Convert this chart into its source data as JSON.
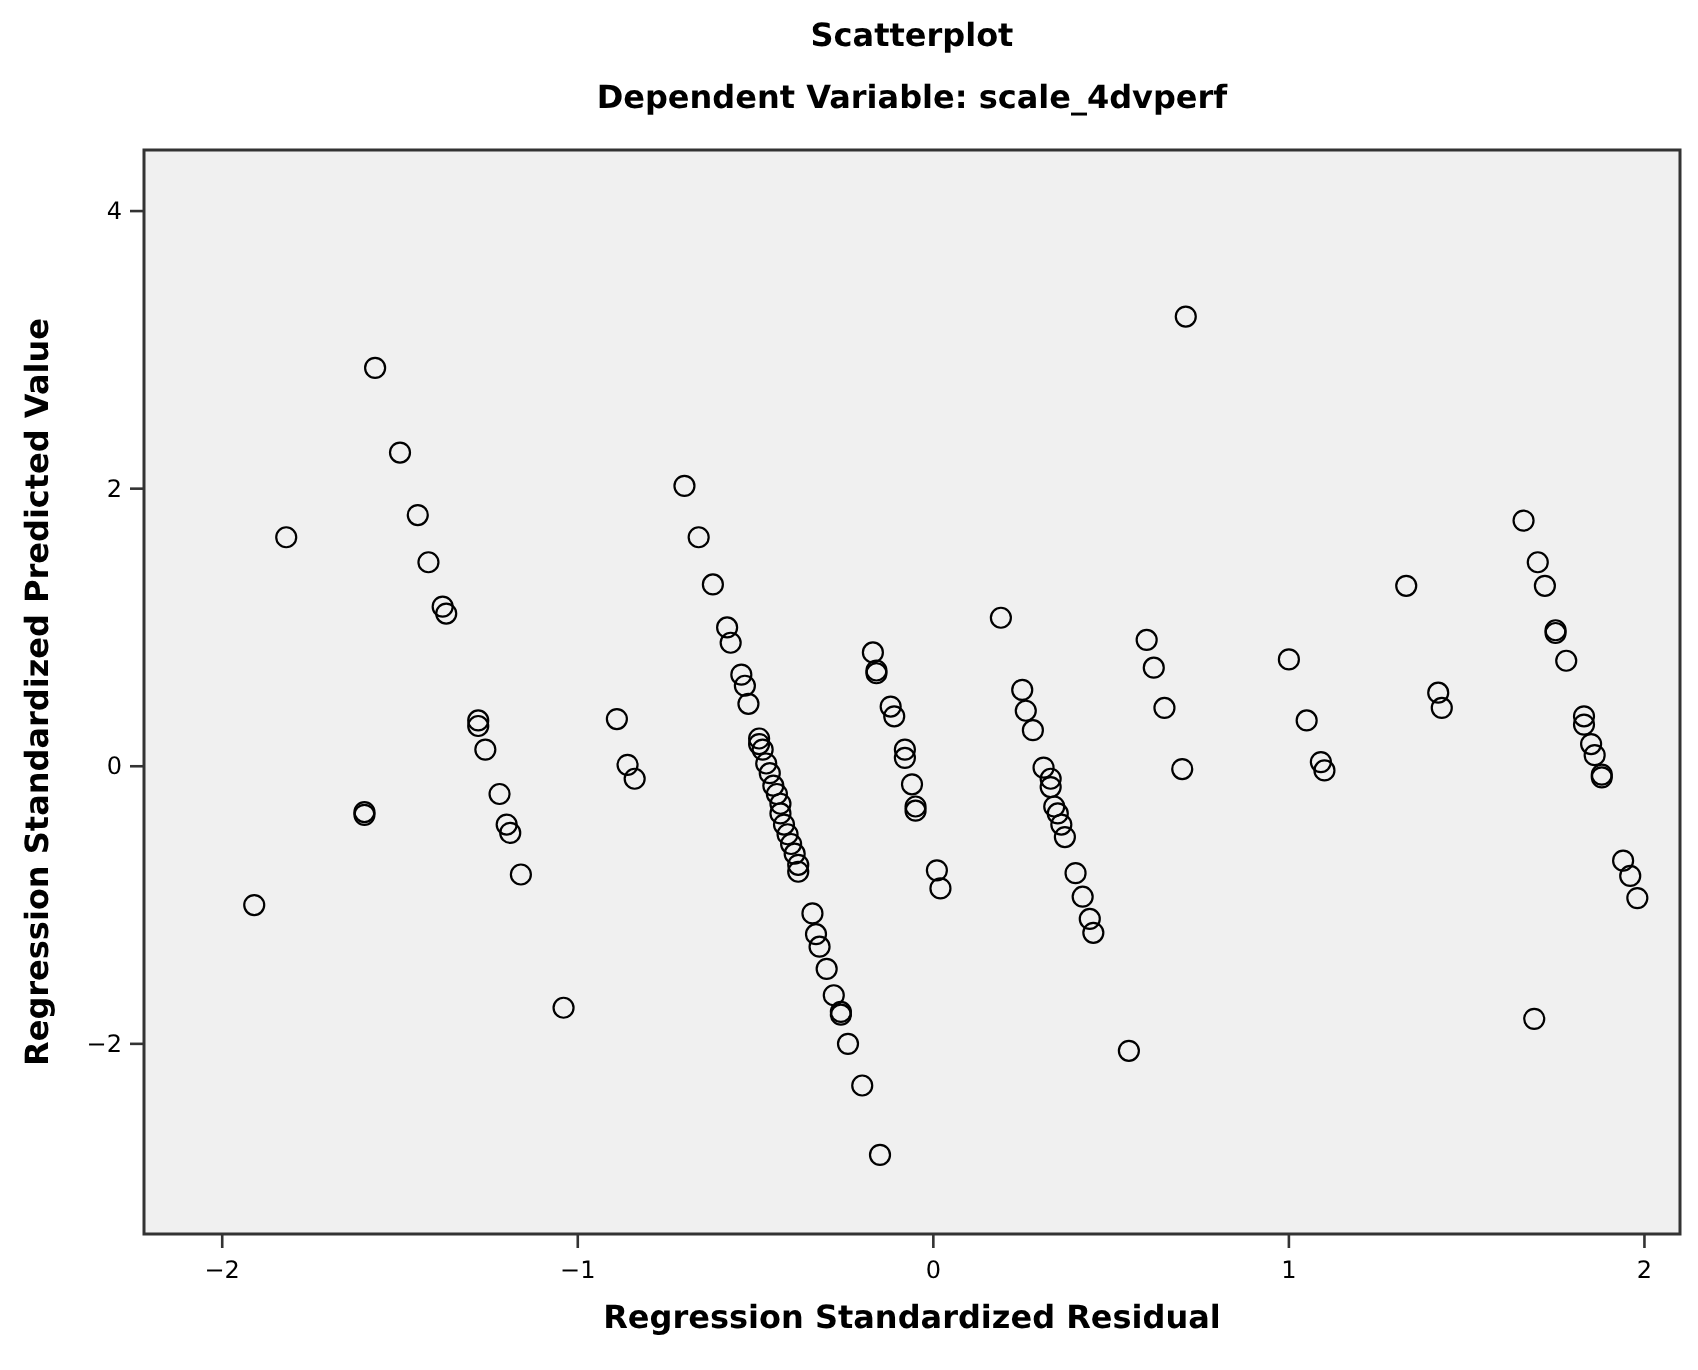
{
  "chart_data": {
    "type": "scatter",
    "title": "Scatterplot",
    "subtitle": "Dependent Variable: scale_4dvperf",
    "xlabel": "Regression Standardized Residual",
    "ylabel": "Regression Standardized Predicted Value",
    "xlim": [
      -2.22,
      2.1
    ],
    "ylim": [
      -3.37,
      4.44
    ],
    "xticks": [
      {
        "value": -2,
        "label": "−2"
      },
      {
        "value": -1,
        "label": "−1"
      },
      0,
      1,
      2
    ],
    "yticks": [
      {
        "value": -2,
        "label": "−2"
      },
      0,
      2,
      4
    ],
    "grid": false,
    "marker": "circle",
    "series": [
      {
        "color": "#000000",
        "x": [
          -1.91,
          -1.82,
          -1.57,
          -1.5,
          -1.45,
          -1.42,
          -1.38,
          -1.37,
          -1.6,
          -1.6,
          -1.28,
          -1.28,
          -1.26,
          -1.22,
          -1.2,
          -1.19,
          -1.16,
          -1.04,
          -0.89,
          -0.86,
          -0.84,
          -0.7,
          -0.66,
          -0.62,
          -0.58,
          -0.57,
          -0.54,
          -0.53,
          -0.52,
          -0.49,
          -0.49,
          -0.48,
          -0.47,
          -0.46,
          -0.45,
          -0.44,
          -0.43,
          -0.43,
          -0.42,
          -0.41,
          -0.4,
          -0.39,
          -0.38,
          -0.38,
          -0.34,
          -0.33,
          -0.32,
          -0.3,
          -0.28,
          -0.26,
          -0.26,
          -0.24,
          -0.2,
          -0.15,
          -0.17,
          -0.16,
          -0.16,
          -0.12,
          -0.11,
          -0.08,
          -0.08,
          -0.06,
          -0.05,
          -0.05,
          0.01,
          0.02,
          0.19,
          0.25,
          0.26,
          0.28,
          0.31,
          0.33,
          0.33,
          0.34,
          0.35,
          0.36,
          0.37,
          0.4,
          0.42,
          0.44,
          0.45,
          0.55,
          0.6,
          0.62,
          0.65,
          0.7,
          0.71,
          1.0,
          1.05,
          1.09,
          1.1,
          1.33,
          1.42,
          1.43,
          1.66,
          1.69,
          1.7,
          1.72,
          1.75,
          1.75,
          1.78,
          1.83,
          1.83,
          1.85,
          1.86,
          1.88,
          1.88,
          1.94,
          1.96,
          1.98
        ],
        "values": [
          -1.0,
          1.65,
          2.87,
          2.26,
          1.81,
          1.47,
          1.15,
          1.1,
          -0.33,
          -0.35,
          0.33,
          0.29,
          0.12,
          -0.2,
          -0.42,
          -0.48,
          -0.78,
          -1.74,
          0.34,
          0.01,
          -0.09,
          2.02,
          1.65,
          1.31,
          1.0,
          0.89,
          0.66,
          0.58,
          0.45,
          0.2,
          0.16,
          0.12,
          0.02,
          -0.05,
          -0.14,
          -0.2,
          -0.27,
          -0.34,
          -0.42,
          -0.49,
          -0.56,
          -0.63,
          -0.71,
          -0.76,
          -1.06,
          -1.21,
          -1.3,
          -1.46,
          -1.65,
          -1.79,
          -1.77,
          -2.0,
          -2.3,
          -2.8,
          0.82,
          0.67,
          0.69,
          0.43,
          0.36,
          0.12,
          0.06,
          -0.13,
          -0.29,
          -0.32,
          -0.75,
          -0.88,
          1.07,
          0.55,
          0.4,
          0.26,
          -0.01,
          -0.09,
          -0.15,
          -0.29,
          -0.34,
          -0.42,
          -0.51,
          -0.77,
          -0.94,
          -1.1,
          -1.2,
          -2.05,
          0.91,
          0.71,
          0.42,
          -0.02,
          3.24,
          0.77,
          0.33,
          0.03,
          -0.03,
          1.3,
          0.53,
          0.42,
          1.77,
          -1.82,
          1.47,
          1.3,
          0.98,
          0.96,
          0.76,
          0.36,
          0.3,
          0.16,
          0.08,
          -0.06,
          -0.08,
          -0.68,
          -0.79,
          -0.95
        ]
      }
    ]
  }
}
